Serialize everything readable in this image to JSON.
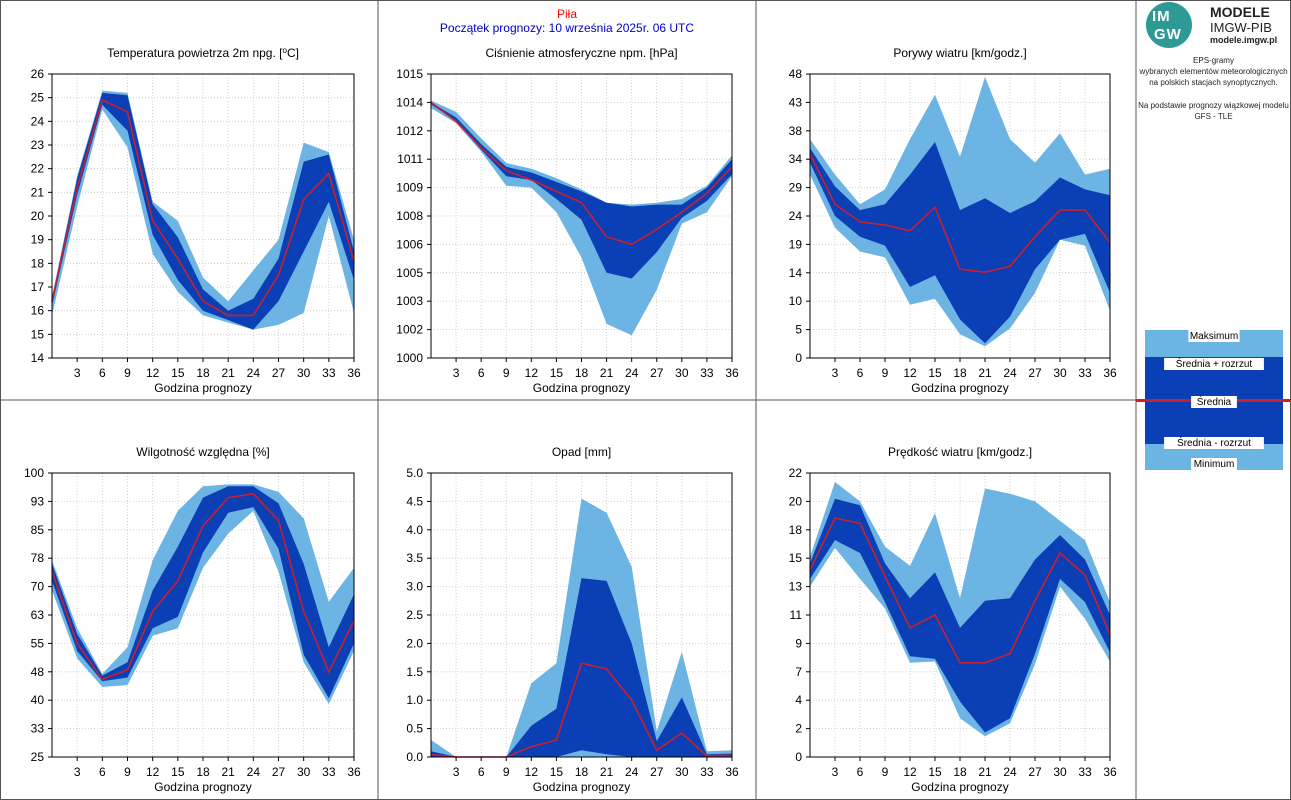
{
  "header": {
    "city": "Piła",
    "forecast_start": "Początek prognozy: 10 września 2025r. 06 UTC"
  },
  "logo": {
    "mark_top": "IM",
    "mark_bottom": "GW",
    "title": "MODELE",
    "subtitle": "IMGW-PIB",
    "url": "modele.imgw.pl"
  },
  "description": {
    "line1": "EPS-gramy",
    "line2": "wybranych elementów meteorologicznych",
    "line3": "na polskich stacjach  synoptycznych.",
    "line4": "Na podstawie prognozy wiązkowej modelu",
    "line5": "GFS - TLE"
  },
  "legend": {
    "max": "Maksimum",
    "mean_plus": "Średnia + rozrzut",
    "mean": "Średnia",
    "mean_minus": "Średnia - rozrzut",
    "min": "Minimum"
  },
  "colors": {
    "outer_band": "#6cb4e4",
    "inner_band": "#0a3fb5",
    "mean_line": "#cc1f2e",
    "city_text": "#ff0000",
    "start_text": "#0000cc"
  },
  "chart_data": [
    {
      "type": "area",
      "title": "Temperatura powietrza 2m npg. [°C]",
      "xlabel": "Godzina prognozy",
      "ylabel": "",
      "x": [
        0,
        3,
        6,
        9,
        12,
        15,
        18,
        21,
        24,
        27,
        30,
        33,
        36
      ],
      "xticks": [
        3,
        6,
        9,
        12,
        15,
        18,
        21,
        24,
        27,
        30,
        33,
        36
      ],
      "ylim": [
        14,
        26
      ],
      "ytick_labels": [
        "14",
        "15",
        "16",
        "17",
        "18",
        "19",
        "20",
        "21",
        "22",
        "23",
        "24",
        "25",
        "26"
      ],
      "series": [
        {
          "name": "Maksimum",
          "values": [
            16.6,
            21.7,
            25.3,
            25.2,
            20.6,
            19.8,
            17.4,
            16.4,
            17.7,
            19.0,
            23.1,
            22.7,
            19.0
          ]
        },
        {
          "name": "Średnia + rozrzut",
          "values": [
            16.5,
            21.6,
            25.2,
            25.1,
            20.5,
            19.1,
            16.9,
            16.0,
            16.5,
            18.2,
            22.3,
            22.6,
            18.5
          ]
        },
        {
          "name": "Średnia",
          "values": [
            16.4,
            21.2,
            24.9,
            24.4,
            19.8,
            18.2,
            16.4,
            15.8,
            15.8,
            17.5,
            20.7,
            21.8,
            18.1
          ]
        },
        {
          "name": "Średnia - rozrzut",
          "values": [
            16.2,
            20.9,
            24.7,
            23.6,
            19.2,
            17.3,
            16.0,
            15.6,
            15.2,
            16.4,
            18.5,
            20.6,
            17.3
          ]
        },
        {
          "name": "Minimum",
          "values": [
            15.8,
            20.4,
            24.5,
            22.9,
            18.4,
            16.8,
            15.8,
            15.5,
            15.2,
            15.4,
            15.9,
            20.0,
            15.9
          ]
        }
      ]
    },
    {
      "type": "area",
      "title": "Ciśnienie atmosferyczne npm. [hPa]",
      "xlabel": "Godzina prognozy",
      "ylabel": "",
      "x": [
        0,
        3,
        6,
        9,
        12,
        15,
        18,
        21,
        24,
        27,
        30,
        33,
        36
      ],
      "xticks": [
        3,
        6,
        9,
        12,
        15,
        18,
        21,
        24,
        27,
        30,
        33,
        36
      ],
      "ylim": [
        1000,
        1015
      ],
      "ytick_labels": [
        "1000",
        "1002",
        "1003",
        "1005",
        "1006",
        "1008",
        "1009",
        "1011",
        "1012",
        "1014",
        "1015"
      ],
      "series": [
        {
          "name": "Maksimum",
          "values": [
            1013.6,
            1013.0,
            1011.6,
            1010.3,
            1010.0,
            1009.5,
            1008.9,
            1008.2,
            1008.1,
            1008.2,
            1008.4,
            1009.1,
            1010.7
          ]
        },
        {
          "name": "Średnia + rozrzut",
          "values": [
            1013.5,
            1012.7,
            1011.3,
            1010.1,
            1009.8,
            1009.3,
            1008.8,
            1008.2,
            1008.0,
            1008.1,
            1008.1,
            1009.0,
            1010.5
          ]
        },
        {
          "name": "Średnia",
          "values": [
            1013.5,
            1012.5,
            1011.1,
            1009.9,
            1009.4,
            1008.8,
            1008.2,
            1006.4,
            1006.0,
            1006.8,
            1007.7,
            1008.7,
            1010.1
          ]
        },
        {
          "name": "Średnia - rozrzut",
          "values": [
            1013.4,
            1012.5,
            1011.0,
            1009.6,
            1009.4,
            1008.4,
            1007.3,
            1004.5,
            1004.2,
            1005.6,
            1007.4,
            1008.3,
            1009.7
          ]
        },
        {
          "name": "Minimum",
          "values": [
            1013.2,
            1012.4,
            1010.9,
            1009.1,
            1009.0,
            1007.7,
            1005.3,
            1001.8,
            1001.2,
            1003.6,
            1007.1,
            1007.7,
            1009.6
          ]
        }
      ]
    },
    {
      "type": "area",
      "title": "Porywy wiatru [km/godz.]",
      "xlabel": "Godzina prognozy",
      "ylabel": "",
      "x": [
        0,
        3,
        6,
        9,
        12,
        15,
        18,
        21,
        24,
        27,
        30,
        33,
        36
      ],
      "xticks": [
        3,
        6,
        9,
        12,
        15,
        18,
        21,
        24,
        27,
        30,
        33,
        36
      ],
      "ylim": [
        0,
        48
      ],
      "ytick_labels": [
        "0",
        "5",
        "10",
        "14",
        "19",
        "24",
        "29",
        "34",
        "38",
        "43",
        "48"
      ],
      "series": [
        {
          "name": "Maksimum",
          "values": [
            37.0,
            31.0,
            26.0,
            28.5,
            37.0,
            44.5,
            34.0,
            47.5,
            37.0,
            33.0,
            38.0,
            31.0,
            32.0
          ]
        },
        {
          "name": "Średnia + rozrzut",
          "values": [
            35.5,
            29.0,
            25.0,
            26.0,
            31.0,
            36.5,
            25.0,
            27.0,
            24.5,
            26.5,
            30.5,
            28.5,
            27.5
          ]
        },
        {
          "name": "Średnia",
          "values": [
            34.5,
            26.0,
            23.0,
            22.5,
            21.5,
            25.5,
            15.0,
            14.5,
            15.5,
            20.5,
            25.0,
            25.0,
            19.5
          ]
        },
        {
          "name": "Średnia - rozrzut",
          "values": [
            33.0,
            24.0,
            20.5,
            19.0,
            12.0,
            14.0,
            6.5,
            2.5,
            7.0,
            15.0,
            20.0,
            21.0,
            11.0
          ]
        },
        {
          "name": "Minimum",
          "values": [
            31.0,
            22.0,
            18.0,
            17.0,
            9.0,
            10.0,
            4.0,
            2.0,
            5.0,
            11.0,
            20.0,
            19.0,
            8.0
          ]
        }
      ]
    },
    {
      "type": "area",
      "title": "Wilgotność względna [%]",
      "xlabel": "Godzina prognozy",
      "ylabel": "",
      "x": [
        0,
        3,
        6,
        9,
        12,
        15,
        18,
        21,
        24,
        27,
        30,
        33,
        36
      ],
      "xticks": [
        3,
        6,
        9,
        12,
        15,
        18,
        21,
        24,
        27,
        30,
        33,
        36
      ],
      "ylim": [
        25,
        100
      ],
      "ytick_labels": [
        "25",
        "33",
        "40",
        "48",
        "55",
        "63",
        "70",
        "78",
        "85",
        "93",
        "100"
      ],
      "series": [
        {
          "name": "Maksimum",
          "values": [
            77.0,
            59.0,
            47.0,
            54.0,
            77.0,
            90.0,
            96.5,
            97.0,
            97.0,
            95.0,
            88.0,
            66.0,
            75.0
          ]
        },
        {
          "name": "Średnia + rozrzut",
          "values": [
            76.0,
            57.5,
            46.5,
            50.0,
            69.0,
            80.5,
            93.5,
            96.5,
            96.5,
            92.0,
            76.0,
            54.0,
            68.0
          ]
        },
        {
          "name": "Średnia",
          "values": [
            74.0,
            55.0,
            45.5,
            48.0,
            63.5,
            71.5,
            86.0,
            93.5,
            94.5,
            87.5,
            63.5,
            47.5,
            61.0
          ]
        },
        {
          "name": "Średnia - rozrzut",
          "values": [
            71.5,
            53.0,
            45.0,
            46.0,
            59.0,
            62.0,
            79.0,
            89.5,
            91.0,
            80.0,
            52.0,
            40.5,
            55.0
          ]
        },
        {
          "name": "Minimum",
          "values": [
            69.0,
            51.0,
            43.5,
            44.0,
            57.0,
            59.0,
            75.0,
            84.0,
            90.0,
            74.0,
            50.0,
            39.0,
            53.0
          ]
        }
      ]
    },
    {
      "type": "area",
      "title": "Opad [mm]",
      "xlabel": "Godzina prognozy",
      "ylabel": "",
      "x": [
        0,
        3,
        6,
        9,
        12,
        15,
        18,
        21,
        24,
        27,
        30,
        33,
        36
      ],
      "xticks": [
        3,
        6,
        9,
        12,
        15,
        18,
        21,
        24,
        27,
        30,
        33,
        36
      ],
      "ylim": [
        0,
        5.0
      ],
      "ytick_labels": [
        "0.0",
        "0.5",
        "1.0",
        "1.5",
        "2.0",
        "2.5",
        "3.0",
        "3.5",
        "4.0",
        "4.5",
        "5.0"
      ],
      "series": [
        {
          "name": "Maksimum",
          "values": [
            0.3,
            0.0,
            0.0,
            0.0,
            1.3,
            1.65,
            4.55,
            4.3,
            3.35,
            0.45,
            1.85,
            0.1,
            0.12
          ]
        },
        {
          "name": "Średnia + rozrzut",
          "values": [
            0.1,
            0.0,
            0.0,
            0.0,
            0.55,
            0.85,
            3.15,
            3.1,
            2.0,
            0.28,
            1.05,
            0.05,
            0.06
          ]
        },
        {
          "name": "Średnia",
          "values": [
            0.04,
            0.0,
            0.0,
            0.0,
            0.18,
            0.3,
            1.65,
            1.55,
            1.0,
            0.12,
            0.42,
            0.02,
            0.03
          ]
        },
        {
          "name": "Średnia - rozrzut",
          "values": [
            0.0,
            0.0,
            0.0,
            0.0,
            0.0,
            0.0,
            0.12,
            0.05,
            0.0,
            0.0,
            0.0,
            0.0,
            0.0
          ]
        },
        {
          "name": "Minimum",
          "values": [
            0.0,
            0.0,
            0.0,
            0.0,
            0.0,
            0.0,
            0.0,
            0.0,
            0.0,
            0.0,
            0.0,
            0.0,
            0.0
          ]
        }
      ]
    },
    {
      "type": "area",
      "title": "Prędkość wiatru [km/godz.]",
      "xlabel": "Godzina prognozy",
      "ylabel": "",
      "x": [
        0,
        3,
        6,
        9,
        12,
        15,
        18,
        21,
        24,
        27,
        30,
        33,
        36
      ],
      "xticks": [
        3,
        6,
        9,
        12,
        15,
        18,
        21,
        24,
        27,
        30,
        33,
        36
      ],
      "ylim": [
        0,
        22
      ],
      "ytick_labels": [
        "0",
        "2",
        "4",
        "7",
        "9",
        "11",
        "13",
        "15",
        "18",
        "20",
        "22"
      ],
      "series": [
        {
          "name": "Maksimum",
          "values": [
            15.5,
            21.3,
            19.8,
            16.3,
            14.8,
            18.9,
            12.3,
            20.8,
            20.4,
            19.8,
            18.3,
            16.8,
            12.0
          ]
        },
        {
          "name": "Średnia + rozrzut",
          "values": [
            15.0,
            20.0,
            19.5,
            15.0,
            12.3,
            14.3,
            10.0,
            12.1,
            12.3,
            15.3,
            17.2,
            15.3,
            11.0
          ]
        },
        {
          "name": "Średnia",
          "values": [
            14.5,
            18.5,
            18.1,
            14.0,
            10.0,
            11.0,
            7.3,
            7.3,
            8.0,
            12.1,
            15.8,
            14.1,
            9.5
          ]
        },
        {
          "name": "Średnia - rozrzut",
          "values": [
            13.8,
            16.8,
            15.8,
            12.0,
            7.8,
            7.6,
            4.3,
            1.9,
            3.0,
            8.0,
            13.8,
            12.0,
            8.1
          ]
        },
        {
          "name": "Minimum",
          "values": [
            13.2,
            16.2,
            13.8,
            11.5,
            7.3,
            7.4,
            3.0,
            1.6,
            2.6,
            7.2,
            13.2,
            10.7,
            7.4
          ]
        }
      ]
    }
  ]
}
